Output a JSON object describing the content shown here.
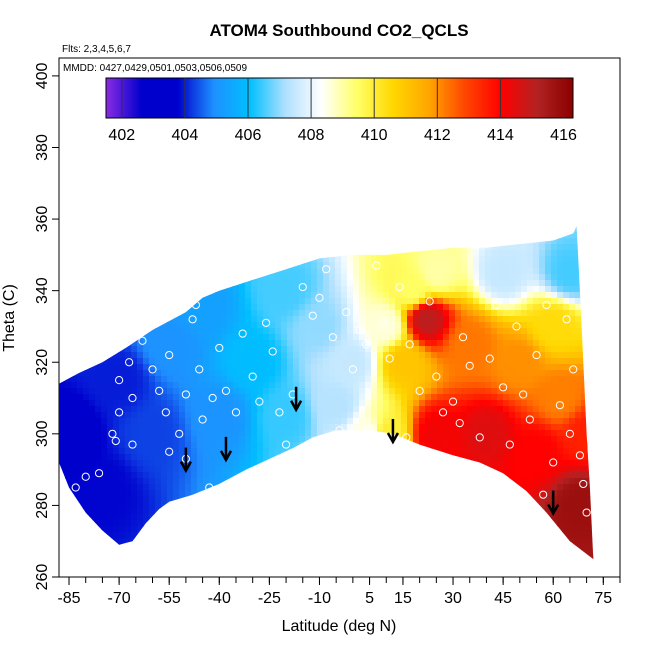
{
  "chart_data": {
    "type": "heatmap",
    "title": "ATOM4 Southbound CO2_QCLS",
    "annotations": {
      "flights": "Flts: 2,3,4,5,6,7",
      "dates": "MMDD: 0427,0429,0501,0503,0506,0509"
    },
    "xlabel": "Latitude (deg N)",
    "ylabel": "Theta (C)",
    "xlim": [
      -88,
      80
    ],
    "ylim": [
      260,
      405
    ],
    "x_ticks": [
      -85,
      -70,
      -55,
      -40,
      -25,
      -10,
      5,
      15,
      30,
      45,
      60,
      75
    ],
    "x_tick_labels": [
      "-85",
      "-70",
      "-55",
      "-40",
      "-25",
      "-10",
      "5",
      "15",
      "30",
      "45",
      "60",
      "75"
    ],
    "y_ticks": [
      260,
      280,
      300,
      320,
      340,
      360,
      380,
      400
    ],
    "y_tick_labels": [
      "260",
      "280",
      "300",
      "320",
      "340",
      "360",
      "380",
      "400"
    ],
    "colorbar": {
      "range": [
        401.5,
        416.3
      ],
      "ticks": [
        402,
        404,
        406,
        408,
        410,
        412,
        414,
        416
      ],
      "tick_labels": [
        "402",
        "404",
        "406",
        "408",
        "410",
        "412",
        "414",
        "416"
      ],
      "colors": [
        "#8a2be2",
        "#0000cd",
        "#0000cd",
        "#1e90ff",
        "#00bfff",
        "#b0e0ff",
        "#ffffff",
        "#ffff66",
        "#ffd700",
        "#ffa500",
        "#ff4500",
        "#ff0000",
        "#b22222",
        "#8b0000"
      ]
    },
    "field_boundary": {
      "top": [
        [
          -88,
          314
        ],
        [
          -82,
          317
        ],
        [
          -75,
          320
        ],
        [
          -68,
          324
        ],
        [
          -60,
          329
        ],
        [
          -50,
          334
        ],
        [
          -45,
          338
        ],
        [
          -40,
          340
        ],
        [
          -30,
          343
        ],
        [
          -20,
          346
        ],
        [
          -10,
          349
        ],
        [
          0,
          350
        ],
        [
          10,
          350
        ],
        [
          20,
          351
        ],
        [
          30,
          352
        ],
        [
          40,
          352
        ],
        [
          50,
          353
        ],
        [
          60,
          354
        ],
        [
          66,
          356
        ],
        [
          67,
          358
        ]
      ],
      "right": [
        [
          67,
          358
        ],
        [
          68,
          340
        ],
        [
          69,
          320
        ],
        [
          70,
          300
        ],
        [
          71,
          285
        ],
        [
          72,
          265
        ]
      ],
      "bottom": [
        [
          72,
          265
        ],
        [
          65,
          270
        ],
        [
          58,
          278
        ],
        [
          52,
          284
        ],
        [
          45,
          289
        ],
        [
          38,
          292
        ],
        [
          30,
          294
        ],
        [
          20,
          297
        ],
        [
          12,
          300
        ],
        [
          5,
          301
        ],
        [
          -5,
          301
        ],
        [
          -12,
          299
        ],
        [
          -18,
          296
        ],
        [
          -25,
          293
        ],
        [
          -32,
          290
        ],
        [
          -40,
          286
        ],
        [
          -48,
          283
        ],
        [
          -55,
          281
        ],
        [
          -58,
          279
        ],
        [
          -62,
          275
        ],
        [
          -66,
          270
        ],
        [
          -70,
          269
        ],
        [
          -75,
          273
        ],
        [
          -80,
          278
        ],
        [
          -85,
          285
        ],
        [
          -88,
          292
        ]
      ]
    },
    "anchors": [
      {
        "x": -85,
        "y": 300,
        "v": 403.6
      },
      {
        "x": -75,
        "y": 285,
        "v": 403.8
      },
      {
        "x": -70,
        "y": 315,
        "v": 404.0
      },
      {
        "x": -60,
        "y": 300,
        "v": 404.3
      },
      {
        "x": -55,
        "y": 325,
        "v": 405.0
      },
      {
        "x": -45,
        "y": 335,
        "v": 405.3
      },
      {
        "x": -40,
        "y": 305,
        "v": 405.0
      },
      {
        "x": -30,
        "y": 320,
        "v": 406.0
      },
      {
        "x": -20,
        "y": 340,
        "v": 406.5
      },
      {
        "x": -20,
        "y": 305,
        "v": 406.4
      },
      {
        "x": -10,
        "y": 330,
        "v": 407.0
      },
      {
        "x": -5,
        "y": 308,
        "v": 407.3
      },
      {
        "x": 0,
        "y": 320,
        "v": 407.5
      },
      {
        "x": 5,
        "y": 300,
        "v": 408.5
      },
      {
        "x": 10,
        "y": 330,
        "v": 408.6
      },
      {
        "x": 10,
        "y": 300,
        "v": 410.0
      },
      {
        "x": 15,
        "y": 320,
        "v": 411.0
      },
      {
        "x": 18,
        "y": 340,
        "v": 409.5
      },
      {
        "x": 22,
        "y": 332,
        "v": 415.0
      },
      {
        "x": 25,
        "y": 345,
        "v": 409.0
      },
      {
        "x": 25,
        "y": 300,
        "v": 414.2
      },
      {
        "x": 35,
        "y": 325,
        "v": 412.3
      },
      {
        "x": 40,
        "y": 300,
        "v": 414.5
      },
      {
        "x": 45,
        "y": 345,
        "v": 407.5
      },
      {
        "x": 50,
        "y": 320,
        "v": 412.0
      },
      {
        "x": 55,
        "y": 295,
        "v": 414.0
      },
      {
        "x": 60,
        "y": 330,
        "v": 410.5
      },
      {
        "x": 62,
        "y": 310,
        "v": 412.2
      },
      {
        "x": 65,
        "y": 345,
        "v": 406.5
      },
      {
        "x": 68,
        "y": 280,
        "v": 415.8
      },
      {
        "x": 70,
        "y": 300,
        "v": 413.5
      }
    ],
    "sample_points": [
      [
        -85,
        317
      ],
      [
        -83,
        285
      ],
      [
        -80,
        288
      ],
      [
        -76,
        289
      ],
      [
        -72,
        300
      ],
      [
        -71,
        298
      ],
      [
        -70,
        306
      ],
      [
        -70,
        315
      ],
      [
        -70,
        326
      ],
      [
        -67,
        320
      ],
      [
        -66,
        310
      ],
      [
        -66,
        297
      ],
      [
        -63,
        326
      ],
      [
        -61,
        330
      ],
      [
        -60,
        318
      ],
      [
        -58,
        312
      ],
      [
        -56,
        306
      ],
      [
        -55,
        295
      ],
      [
        -55,
        322
      ],
      [
        -52,
        300
      ],
      [
        -50,
        293
      ],
      [
        -50,
        311
      ],
      [
        -48,
        332
      ],
      [
        -47,
        336
      ],
      [
        -46,
        318
      ],
      [
        -45,
        304
      ],
      [
        -43,
        285
      ],
      [
        -42,
        310
      ],
      [
        -40,
        324
      ],
      [
        -38,
        312
      ],
      [
        -35,
        306
      ],
      [
        -33,
        328
      ],
      [
        -30,
        316
      ],
      [
        -28,
        309
      ],
      [
        -26,
        331
      ],
      [
        -24,
        323
      ],
      [
        -22,
        306
      ],
      [
        -20,
        297
      ],
      [
        -18,
        311
      ],
      [
        -15,
        341
      ],
      [
        -14,
        349
      ],
      [
        -12,
        333
      ],
      [
        -10,
        338
      ],
      [
        -8,
        346
      ],
      [
        -6,
        327
      ],
      [
        -4,
        301
      ],
      [
        -2,
        334
      ],
      [
        0,
        318
      ],
      [
        2,
        329
      ],
      [
        4,
        325
      ],
      [
        5,
        301
      ],
      [
        7,
        347
      ],
      [
        9,
        331
      ],
      [
        11,
        321
      ],
      [
        14,
        341
      ],
      [
        16,
        299
      ],
      [
        17,
        325
      ],
      [
        18,
        296
      ],
      [
        20,
        312
      ],
      [
        23,
        337
      ],
      [
        25,
        316
      ],
      [
        27,
        306
      ],
      [
        29,
        292
      ],
      [
        30,
        309
      ],
      [
        32,
        303
      ],
      [
        33,
        327
      ],
      [
        35,
        319
      ],
      [
        38,
        299
      ],
      [
        40,
        284
      ],
      [
        41,
        321
      ],
      [
        43,
        336
      ],
      [
        45,
        313
      ],
      [
        47,
        297
      ],
      [
        49,
        330
      ],
      [
        51,
        311
      ],
      [
        53,
        304
      ],
      [
        55,
        322
      ],
      [
        57,
        283
      ],
      [
        58,
        336
      ],
      [
        60,
        292
      ],
      [
        62,
        308
      ],
      [
        64,
        332
      ],
      [
        65,
        300
      ],
      [
        66,
        318
      ],
      [
        68,
        294
      ],
      [
        69,
        286
      ],
      [
        70,
        278
      ]
    ],
    "arrows": [
      [
        -50,
        290
      ],
      [
        -38,
        293
      ],
      [
        -17,
        307
      ],
      [
        12,
        298
      ],
      [
        60,
        278
      ]
    ]
  }
}
